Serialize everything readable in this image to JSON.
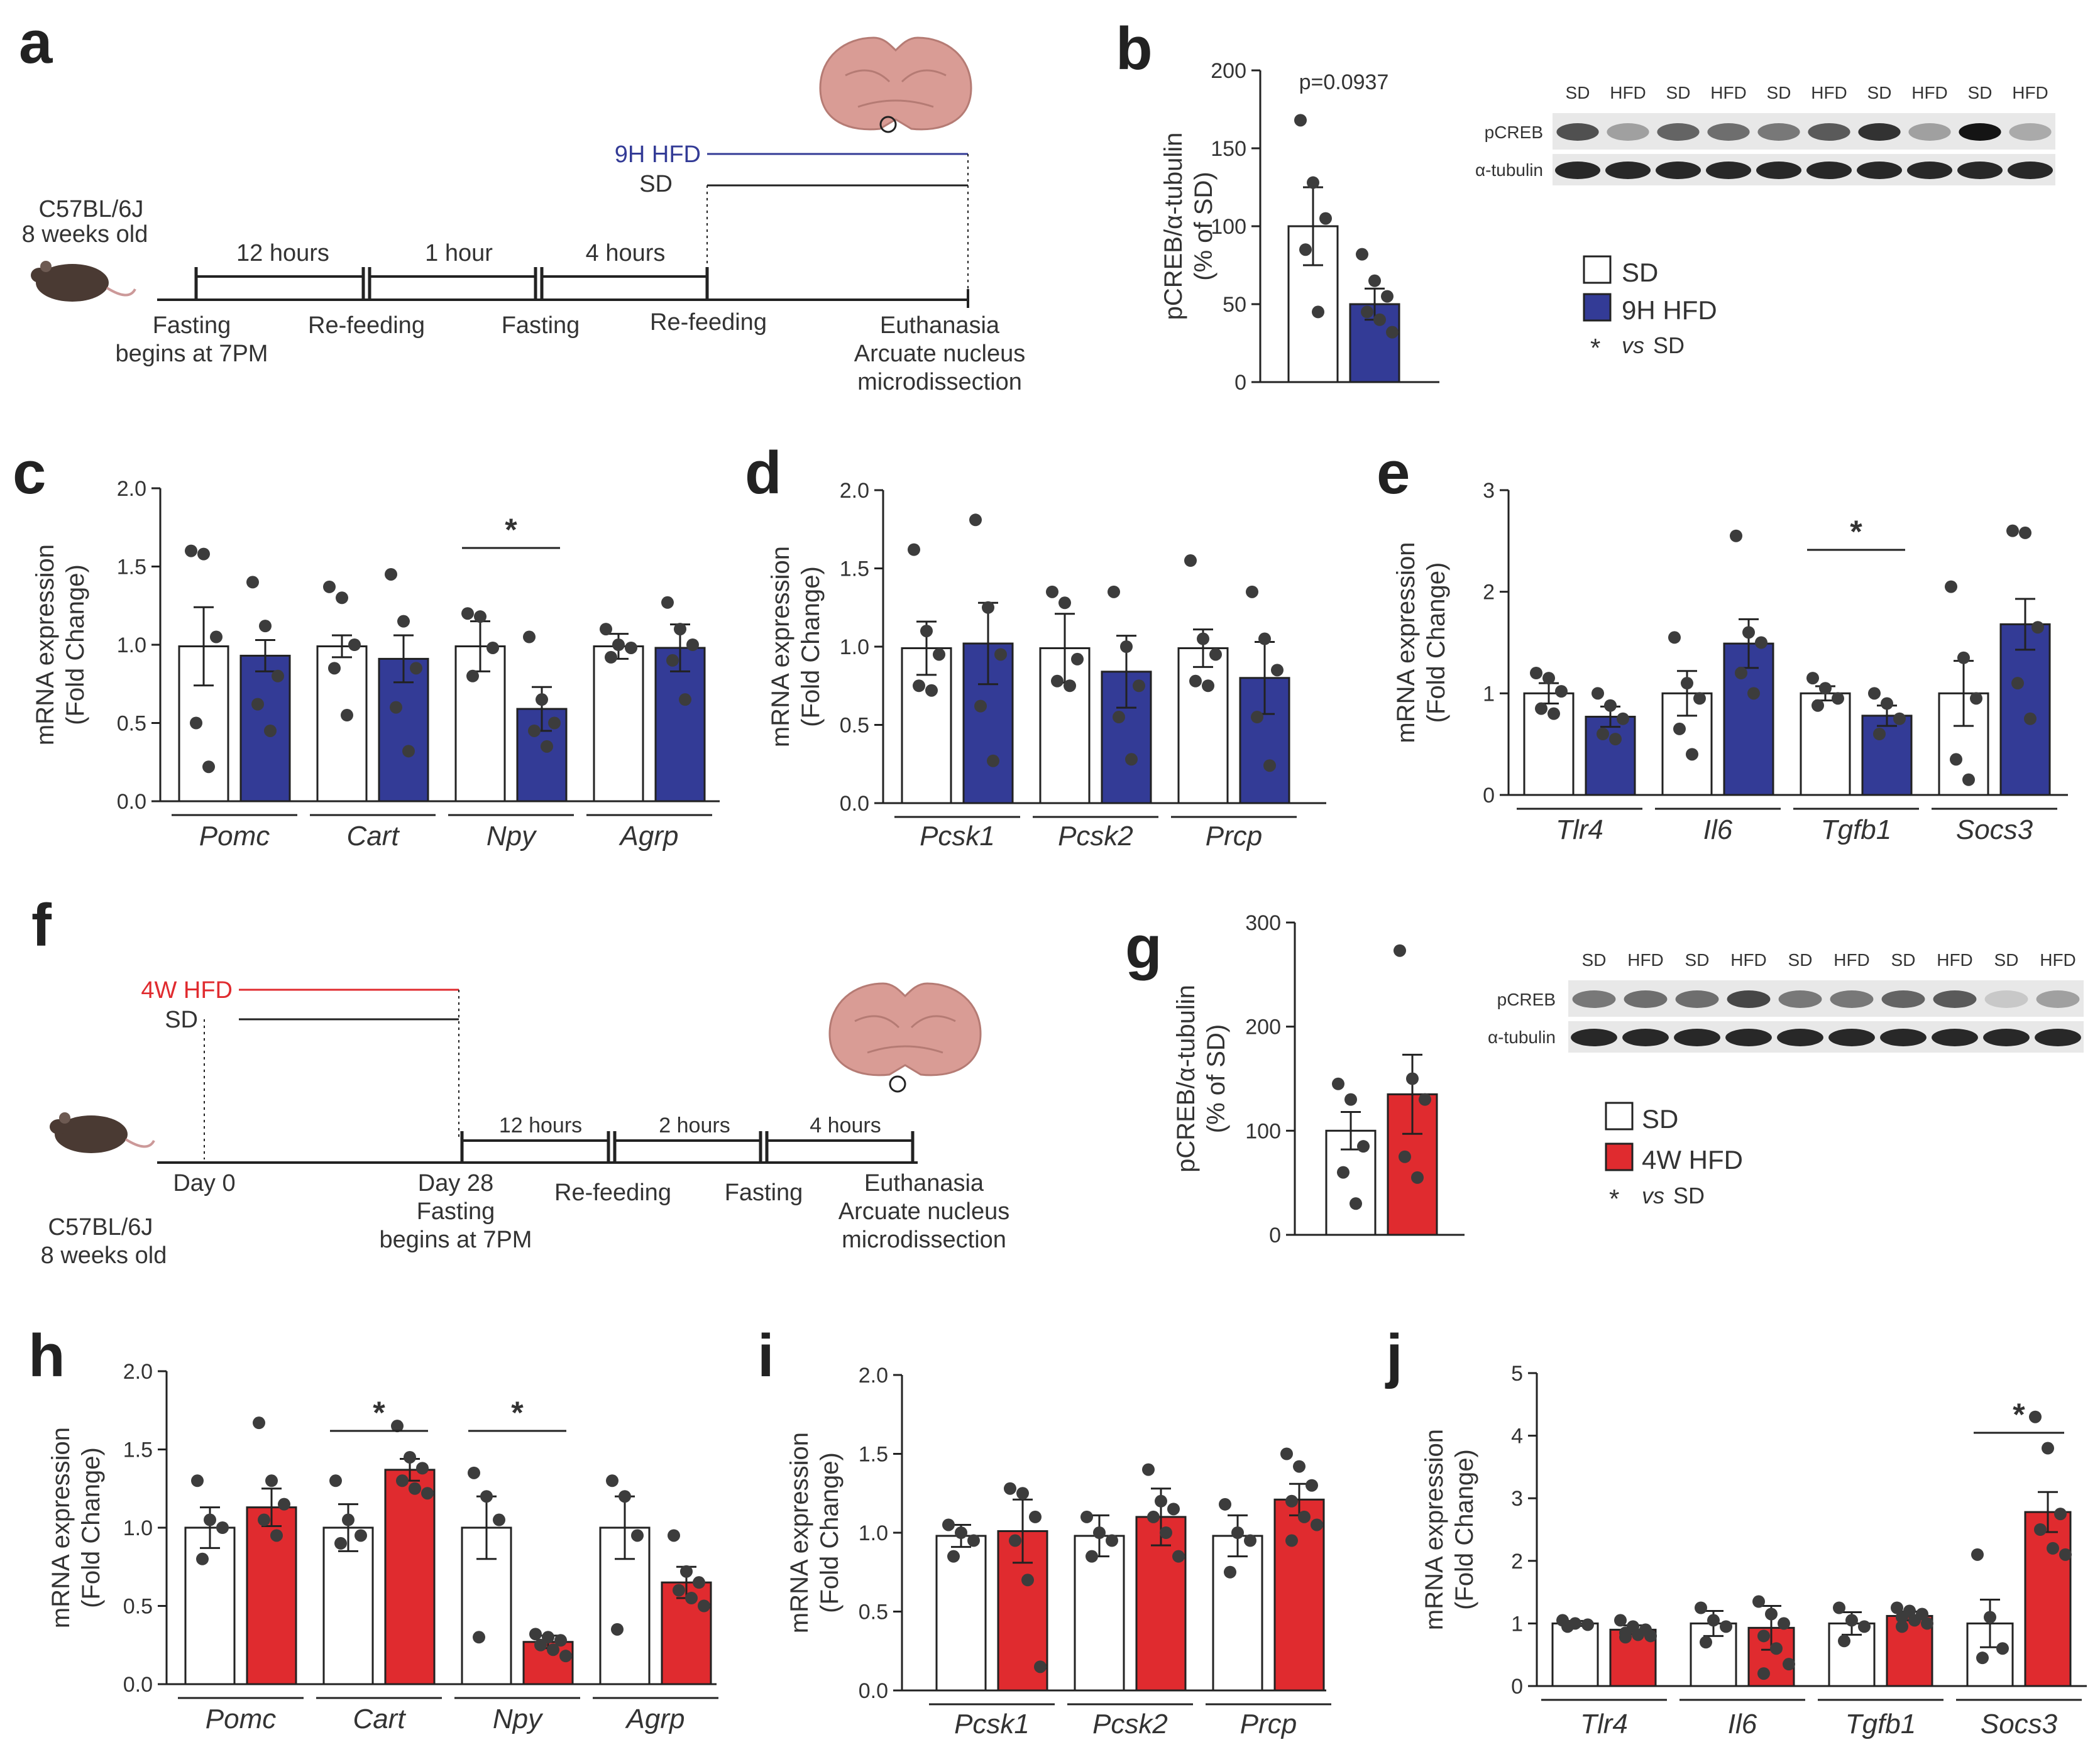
{
  "panels": {
    "a": {
      "letter": "a"
    },
    "b": {
      "letter": "b"
    },
    "c": {
      "letter": "c"
    },
    "d": {
      "letter": "d"
    },
    "e": {
      "letter": "e"
    },
    "f": {
      "letter": "f"
    },
    "g": {
      "letter": "g"
    },
    "h": {
      "letter": "h"
    },
    "i": {
      "letter": "i"
    },
    "j": {
      "letter": "j"
    }
  },
  "colors": {
    "sd": "#ffffff",
    "hfd9h": "#333b96",
    "hfd4w": "#e02b2f",
    "point": "#3c3c3c",
    "brain": "#d99c95"
  },
  "timeline_a": {
    "mouse_label_1": "C57BL/6J",
    "mouse_label_2": "8 weeks old",
    "interval_1": "12 hours",
    "interval_2": "1 hour",
    "interval_3": "4 hours",
    "diet_hfd": "9H HFD",
    "diet_sd": "SD",
    "event_1_line1": "Fasting",
    "event_1_line2": "begins at 7PM",
    "event_2": "Re-feeding",
    "event_3": "Fasting",
    "event_4": "Re-feeding",
    "event_5_line1": "Euthanasia",
    "event_5_line2": "Arcuate nucleus",
    "event_5_line3": "microdissection"
  },
  "timeline_f": {
    "mouse_label_1": "C57BL/6J",
    "mouse_label_2": "8 weeks old",
    "diet_hfd": "4W HFD",
    "diet_sd": "SD",
    "day_0": "Day 0",
    "day_28_line1": "Day 28",
    "day_28_line2": "Fasting",
    "day_28_line3": "begins at 7PM",
    "interval_1": "12 hours",
    "interval_2": "2 hours",
    "interval_3": "4 hours",
    "event_1": "Re-feeding",
    "event_2": "Fasting",
    "event_3_line1": "Euthanasia",
    "event_3_line2": "Arcuate nucleus",
    "event_3_line3": "microdissection"
  },
  "blot_b": {
    "lanes": [
      "SD",
      "HFD",
      "SD",
      "HFD",
      "SD",
      "HFD",
      "SD",
      "HFD",
      "SD",
      "HFD"
    ],
    "row_1": "pCREB",
    "row_2": "α-tubulin",
    "pcreb_intensity": [
      0.7,
      0.3,
      0.6,
      0.55,
      0.5,
      0.65,
      0.85,
      0.3,
      1.0,
      0.25
    ]
  },
  "blot_g": {
    "lanes": [
      "SD",
      "HFD",
      "SD",
      "HFD",
      "SD",
      "HFD",
      "SD",
      "HFD",
      "SD",
      "HFD"
    ],
    "row_1": "pCREB",
    "row_2": "α-tubulin",
    "pcreb_intensity": [
      0.5,
      0.55,
      0.55,
      0.75,
      0.5,
      0.5,
      0.6,
      0.65,
      0.1,
      0.3
    ]
  },
  "legend_b": {
    "sd": "SD",
    "hfd": "9H HFD",
    "star": "*",
    "vs": "vs",
    "vs_sd": "SD"
  },
  "legend_g": {
    "sd": "SD",
    "hfd": "4W HFD",
    "star": "*",
    "vs": "vs",
    "vs_sd": "SD"
  },
  "chart_data": [
    {
      "id": "b",
      "type": "bar",
      "ylabel_1": "pCREB/α-tubulin",
      "ylabel_2": "(% of SD)",
      "ylim": [
        0,
        200
      ],
      "yticks": [
        "0",
        "50",
        "100",
        "150",
        "200"
      ],
      "hfd": "9h",
      "categories": [
        ""
      ],
      "bracket": {
        "text": "p=0.0937"
      },
      "groups": [
        {
          "sd": {
            "mean": 100,
            "sem": 25,
            "points": [
              168,
              128,
              105,
              85,
              45
            ]
          },
          "hfd": {
            "mean": 50,
            "sem": 10,
            "points": [
              82,
              65,
              55,
              45,
              40,
              32
            ]
          }
        }
      ]
    },
    {
      "id": "c",
      "type": "bar",
      "ylabel_1": "mRNA expression",
      "ylabel_2": "(Fold Change)",
      "ylim": [
        0,
        2
      ],
      "yticks": [
        "0.0",
        "0.5",
        "1.0",
        "1.5",
        "2.0"
      ],
      "hfd": "9h",
      "categories": [
        "Pomc",
        "Cart",
        "Npy",
        "Agrp"
      ],
      "sig": [
        {
          "g": 2,
          "text": "*"
        }
      ],
      "groups": [
        {
          "sd": {
            "mean": 0.99,
            "sem": 0.25,
            "points": [
              1.6,
              1.58,
              1.05,
              0.5,
              0.22
            ]
          },
          "hfd": {
            "mean": 0.93,
            "sem": 0.1,
            "points": [
              1.4,
              1.12,
              0.8,
              0.62,
              0.45
            ]
          }
        },
        {
          "sd": {
            "mean": 0.99,
            "sem": 0.07,
            "points": [
              1.37,
              1.3,
              1.0,
              0.85,
              0.55
            ]
          },
          "hfd": {
            "mean": 0.91,
            "sem": 0.15,
            "points": [
              1.45,
              1.15,
              0.85,
              0.6,
              0.32
            ]
          }
        },
        {
          "sd": {
            "mean": 0.99,
            "sem": 0.16,
            "points": [
              1.2,
              1.18,
              0.98,
              0.8
            ]
          },
          "hfd": {
            "mean": 0.59,
            "sem": 0.14,
            "points": [
              1.05,
              0.65,
              0.5,
              0.45,
              0.35
            ]
          }
        },
        {
          "sd": {
            "mean": 0.99,
            "sem": 0.08,
            "points": [
              1.1,
              1.0,
              0.98,
              0.92
            ]
          },
          "hfd": {
            "mean": 0.98,
            "sem": 0.15,
            "points": [
              1.27,
              1.1,
              1.0,
              0.9,
              0.65
            ]
          }
        }
      ]
    },
    {
      "id": "d",
      "type": "bar",
      "ylabel_1": "mRNA expression",
      "ylabel_2": "(Fold Change)",
      "ylim": [
        0,
        2
      ],
      "yticks": [
        "0.0",
        "0.5",
        "1.0",
        "1.5",
        "2.0"
      ],
      "hfd": "9h",
      "categories": [
        "Pcsk1",
        "Pcsk2",
        "Prcp"
      ],
      "sig": [],
      "groups": [
        {
          "sd": {
            "mean": 0.99,
            "sem": 0.17,
            "points": [
              1.62,
              1.1,
              0.95,
              0.75,
              0.72
            ]
          },
          "hfd": {
            "mean": 1.02,
            "sem": 0.26,
            "points": [
              1.81,
              1.25,
              0.95,
              0.62,
              0.27
            ]
          }
        },
        {
          "sd": {
            "mean": 0.99,
            "sem": 0.22,
            "points": [
              1.35,
              1.28,
              0.92,
              0.78,
              0.75
            ]
          },
          "hfd": {
            "mean": 0.84,
            "sem": 0.23,
            "points": [
              1.35,
              1.0,
              0.75,
              0.55,
              0.28
            ]
          }
        },
        {
          "sd": {
            "mean": 0.99,
            "sem": 0.12,
            "points": [
              1.55,
              1.05,
              0.95,
              0.78,
              0.75
            ]
          },
          "hfd": {
            "mean": 0.8,
            "sem": 0.23,
            "points": [
              1.35,
              1.05,
              0.85,
              0.55,
              0.24
            ]
          }
        }
      ]
    },
    {
      "id": "e",
      "type": "bar",
      "ylabel_1": "mRNA expression",
      "ylabel_2": "(Fold Change)",
      "ylim": [
        0,
        3
      ],
      "yticks": [
        "0",
        "1",
        "2",
        "3"
      ],
      "hfd": "9h",
      "categories": [
        "Tlr4",
        "Il6",
        "Tgfb1",
        "Socs3"
      ],
      "sig": [
        {
          "g": 2,
          "text": "*"
        }
      ],
      "groups": [
        {
          "sd": {
            "mean": 1.0,
            "sem": 0.1,
            "points": [
              1.2,
              1.15,
              1.02,
              0.85,
              0.8
            ]
          },
          "hfd": {
            "mean": 0.77,
            "sem": 0.1,
            "points": [
              1.0,
              0.88,
              0.75,
              0.6,
              0.55
            ]
          }
        },
        {
          "sd": {
            "mean": 1.0,
            "sem": 0.22,
            "points": [
              1.55,
              1.1,
              0.95,
              0.65,
              0.4
            ]
          },
          "hfd": {
            "mean": 1.49,
            "sem": 0.24,
            "points": [
              2.55,
              1.6,
              1.5,
              1.2,
              1.0
            ]
          }
        },
        {
          "sd": {
            "mean": 1.0,
            "sem": 0.07,
            "points": [
              1.15,
              1.05,
              0.95,
              0.88
            ]
          },
          "hfd": {
            "mean": 0.78,
            "sem": 0.1,
            "points": [
              1.0,
              0.9,
              0.75,
              0.6
            ]
          }
        },
        {
          "sd": {
            "mean": 1.0,
            "sem": 0.32,
            "points": [
              2.05,
              1.35,
              0.95,
              0.35,
              0.15
            ]
          },
          "hfd": {
            "mean": 1.68,
            "sem": 0.25,
            "points": [
              2.6,
              2.58,
              1.65,
              1.1,
              0.75
            ]
          }
        }
      ]
    },
    {
      "id": "g",
      "type": "bar",
      "ylabel_1": "pCREB/α-tubulin",
      "ylabel_2": "(% of SD)",
      "ylim": [
        0,
        300
      ],
      "yticks": [
        "0",
        "100",
        "200",
        "300"
      ],
      "hfd": "4w",
      "categories": [
        ""
      ],
      "groups": [
        {
          "sd": {
            "mean": 100,
            "sem": 18,
            "points": [
              145,
              130,
              85,
              60,
              30
            ]
          },
          "hfd": {
            "mean": 135,
            "sem": 38,
            "points": [
              273,
              150,
              130,
              75,
              55
            ]
          }
        }
      ]
    },
    {
      "id": "h",
      "type": "bar",
      "ylabel_1": "mRNA expression",
      "ylabel_2": "(Fold Change)",
      "ylim": [
        0,
        2
      ],
      "yticks": [
        "0.0",
        "0.5",
        "1.0",
        "1.5",
        "2.0"
      ],
      "hfd": "4w",
      "categories": [
        "Pomc",
        "Cart",
        "Npy",
        "Agrp"
      ],
      "sig": [
        {
          "g": 1,
          "text": "*"
        },
        {
          "g": 2,
          "text": "*"
        }
      ],
      "groups": [
        {
          "sd": {
            "mean": 1.0,
            "sem": 0.13,
            "points": [
              1.3,
              1.05,
              1.0,
              0.8
            ]
          },
          "hfd": {
            "mean": 1.13,
            "sem": 0.12,
            "points": [
              1.67,
              1.3,
              1.15,
              1.05,
              0.95
            ]
          }
        },
        {
          "sd": {
            "mean": 1.0,
            "sem": 0.15,
            "points": [
              1.3,
              1.05,
              0.95,
              0.9
            ]
          },
          "hfd": {
            "mean": 1.37,
            "sem": 0.07,
            "points": [
              1.65,
              1.45,
              1.38,
              1.3,
              1.25,
              1.22
            ]
          }
        },
        {
          "sd": {
            "mean": 1.0,
            "sem": 0.2,
            "points": [
              1.35,
              1.2,
              1.05,
              0.3
            ]
          },
          "hfd": {
            "mean": 0.27,
            "sem": 0.04,
            "points": [
              0.32,
              0.3,
              0.28,
              0.25,
              0.22,
              0.18
            ]
          }
        },
        {
          "sd": {
            "mean": 1.0,
            "sem": 0.2,
            "points": [
              1.3,
              1.2,
              0.95,
              0.35
            ]
          },
          "hfd": {
            "mean": 0.65,
            "sem": 0.1,
            "points": [
              0.95,
              0.72,
              0.65,
              0.6,
              0.55,
              0.5
            ]
          }
        }
      ]
    },
    {
      "id": "i",
      "type": "bar",
      "ylabel_1": "mRNA expression",
      "ylabel_2": "(Fold Change)",
      "ylim": [
        0,
        2
      ],
      "yticks": [
        "0.0",
        "0.5",
        "1.0",
        "1.5",
        "2.0"
      ],
      "hfd": "4w",
      "categories": [
        "Pcsk1",
        "Pcsk2",
        "Prcp"
      ],
      "sig": [],
      "groups": [
        {
          "sd": {
            "mean": 0.98,
            "sem": 0.07,
            "points": [
              1.05,
              1.0,
              0.95,
              0.85
            ]
          },
          "hfd": {
            "mean": 1.01,
            "sem": 0.2,
            "points": [
              1.28,
              1.25,
              1.1,
              0.95,
              0.7,
              0.15
            ]
          }
        },
        {
          "sd": {
            "mean": 0.98,
            "sem": 0.13,
            "points": [
              1.1,
              1.0,
              0.95,
              0.85
            ]
          },
          "hfd": {
            "mean": 1.1,
            "sem": 0.18,
            "points": [
              1.4,
              1.2,
              1.15,
              1.1,
              1.0,
              0.85
            ]
          }
        },
        {
          "sd": {
            "mean": 0.98,
            "sem": 0.13,
            "points": [
              1.18,
              1.0,
              0.95,
              0.75
            ]
          },
          "hfd": {
            "mean": 1.21,
            "sem": 0.1,
            "points": [
              1.5,
              1.42,
              1.3,
              1.2,
              1.1,
              1.05,
              0.95
            ]
          }
        }
      ]
    },
    {
      "id": "j",
      "type": "bar",
      "ylabel_1": "mRNA expression",
      "ylabel_2": "(Fold Change)",
      "ylim": [
        0,
        5
      ],
      "yticks": [
        "0",
        "1",
        "2",
        "3",
        "4",
        "5"
      ],
      "hfd": "4w",
      "categories": [
        "Tlr4",
        "Il6",
        "Tgfb1",
        "Socs3"
      ],
      "sig": [
        {
          "g": 3,
          "text": "*"
        }
      ],
      "groups": [
        {
          "sd": {
            "mean": 1.0,
            "sem": 0.04,
            "points": [
              1.05,
              1.0,
              0.98,
              0.95
            ]
          },
          "hfd": {
            "mean": 0.9,
            "sem": 0.07,
            "points": [
              1.05,
              0.95,
              0.9,
              0.85,
              0.82,
              0.8,
              0.78
            ]
          }
        },
        {
          "sd": {
            "mean": 1.0,
            "sem": 0.2,
            "points": [
              1.25,
              1.05,
              0.95,
              0.7
            ]
          },
          "hfd": {
            "mean": 0.93,
            "sem": 0.35,
            "points": [
              1.35,
              1.15,
              1.0,
              0.8,
              0.6,
              0.35,
              0.2
            ]
          }
        },
        {
          "sd": {
            "mean": 1.0,
            "sem": 0.18,
            "points": [
              1.25,
              1.05,
              0.95,
              0.72
            ]
          },
          "hfd": {
            "mean": 1.12,
            "sem": 0.07,
            "points": [
              1.25,
              1.2,
              1.15,
              1.1,
              1.05,
              1.0,
              0.95
            ]
          }
        },
        {
          "sd": {
            "mean": 1.0,
            "sem": 0.38,
            "points": [
              2.1,
              1.1,
              0.6,
              0.45
            ]
          },
          "hfd": {
            "mean": 2.78,
            "sem": 0.32,
            "points": [
              4.3,
              3.8,
              2.75,
              2.5,
              2.2,
              2.1
            ]
          }
        }
      ]
    }
  ]
}
